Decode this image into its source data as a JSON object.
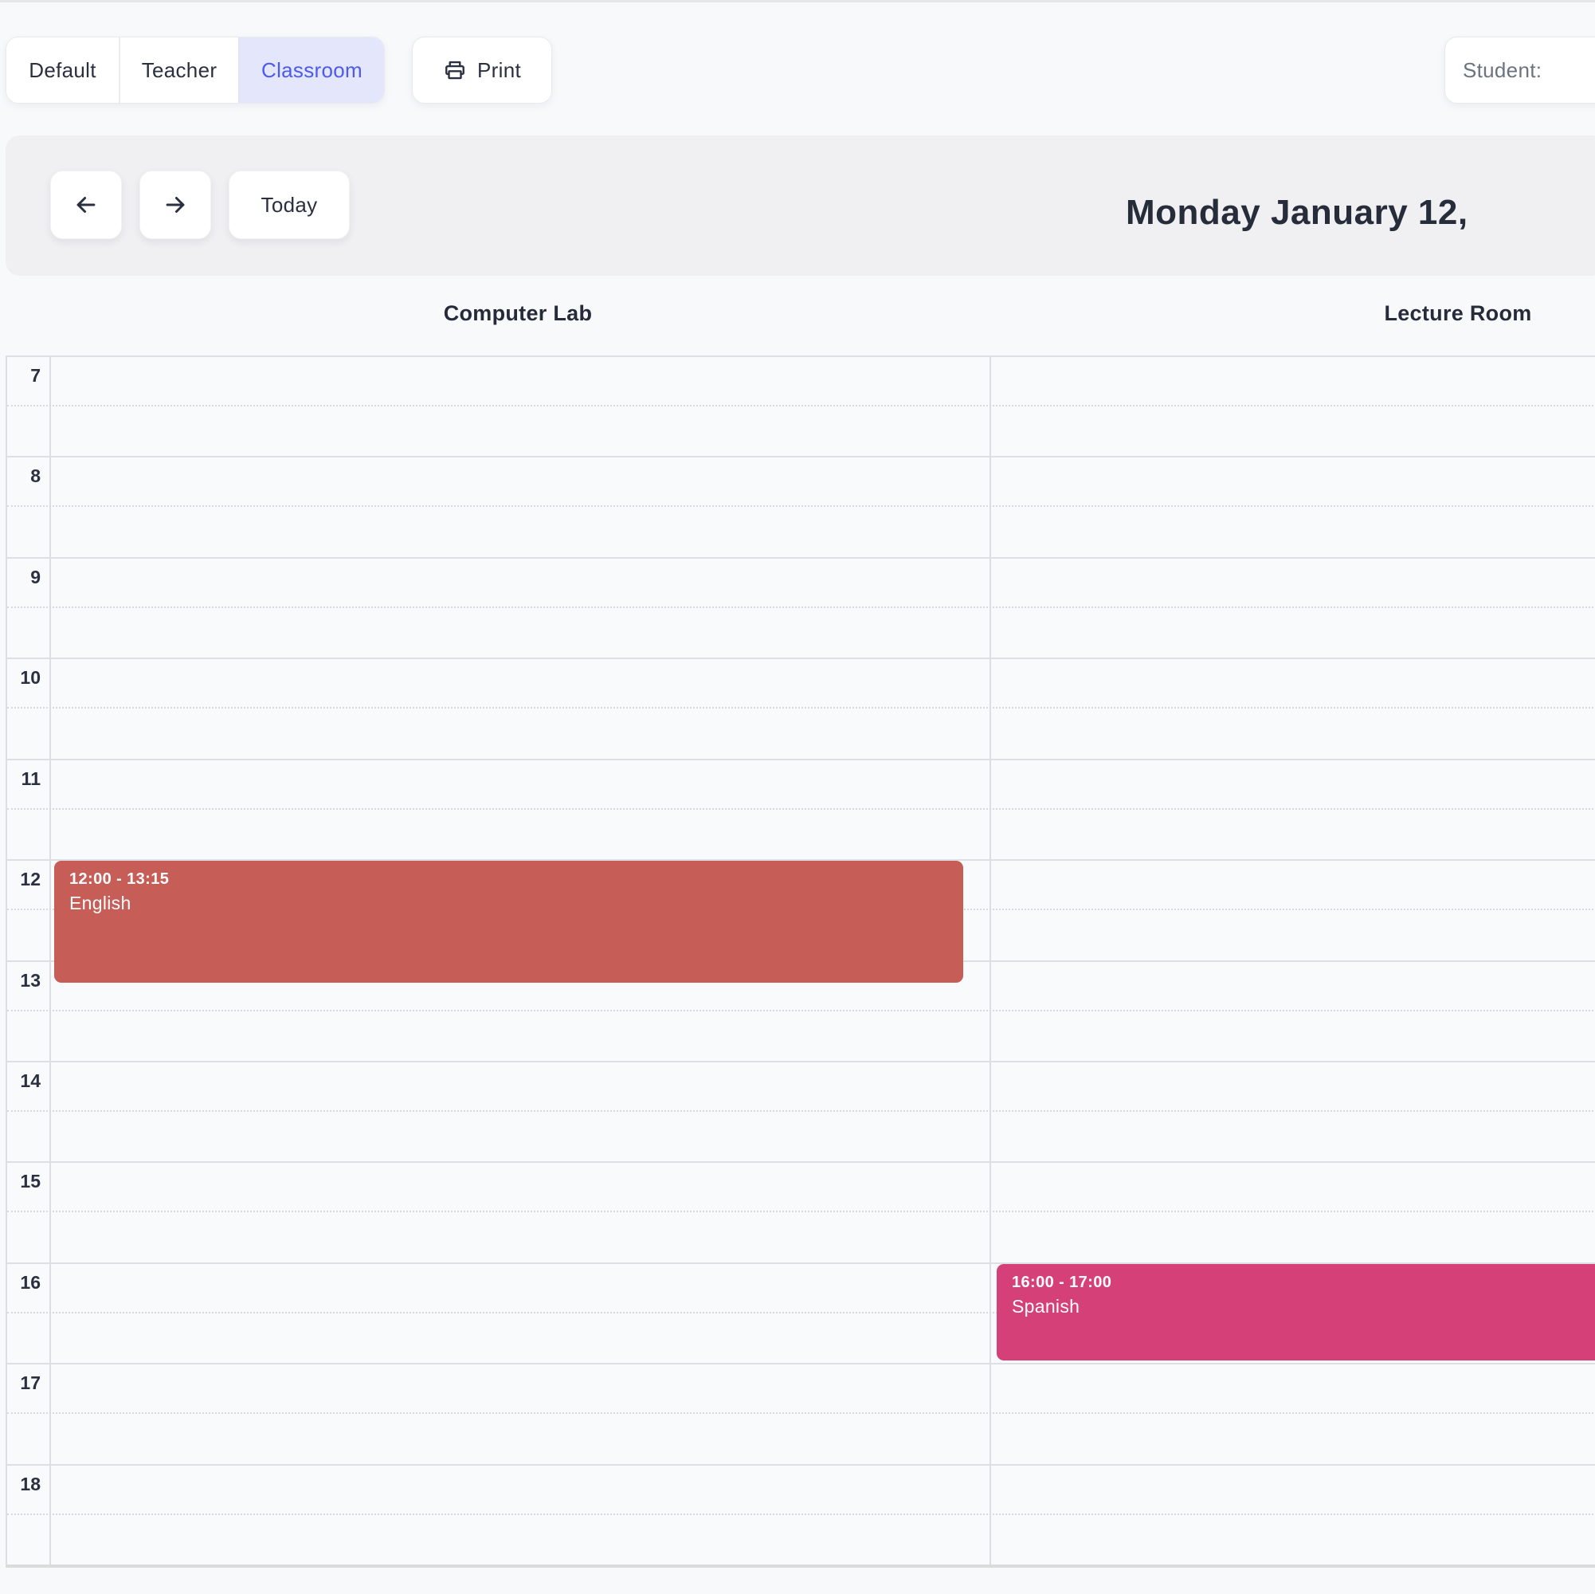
{
  "header": {
    "view_tabs": [
      {
        "label": "Default",
        "active": false
      },
      {
        "label": "Teacher",
        "active": false
      },
      {
        "label": "Classroom",
        "active": true
      }
    ],
    "print_label": "Print",
    "student_label": "Student:"
  },
  "toolbar": {
    "back_icon": "arrow-left",
    "forward_icon": "arrow-right",
    "today_label": "Today",
    "date_title": "Monday January 12,"
  },
  "schedule": {
    "columns": [
      "Computer Lab",
      "Lecture Room"
    ],
    "hours": [
      "7",
      "8",
      "9",
      "10",
      "11",
      "12",
      "13",
      "14",
      "15",
      "16",
      "17",
      "18"
    ],
    "events": [
      {
        "column": 0,
        "time_label": "12:00 - 13:15",
        "title": "English",
        "start": 12.0,
        "end": 13.25,
        "color": "#c65d57"
      },
      {
        "column": 1,
        "time_label": "16:00 - 17:00",
        "title": "Spanish",
        "start": 16.0,
        "end": 17.0,
        "color": "#d64079"
      }
    ]
  },
  "colors": {
    "active_tab_bg": "#e4e6fb",
    "active_tab_text": "#4c5af0",
    "panel_bg": "#f0f0f2",
    "grid_line": "#dcdee1",
    "event_english": "#c65d57",
    "event_spanish": "#d64079"
  }
}
